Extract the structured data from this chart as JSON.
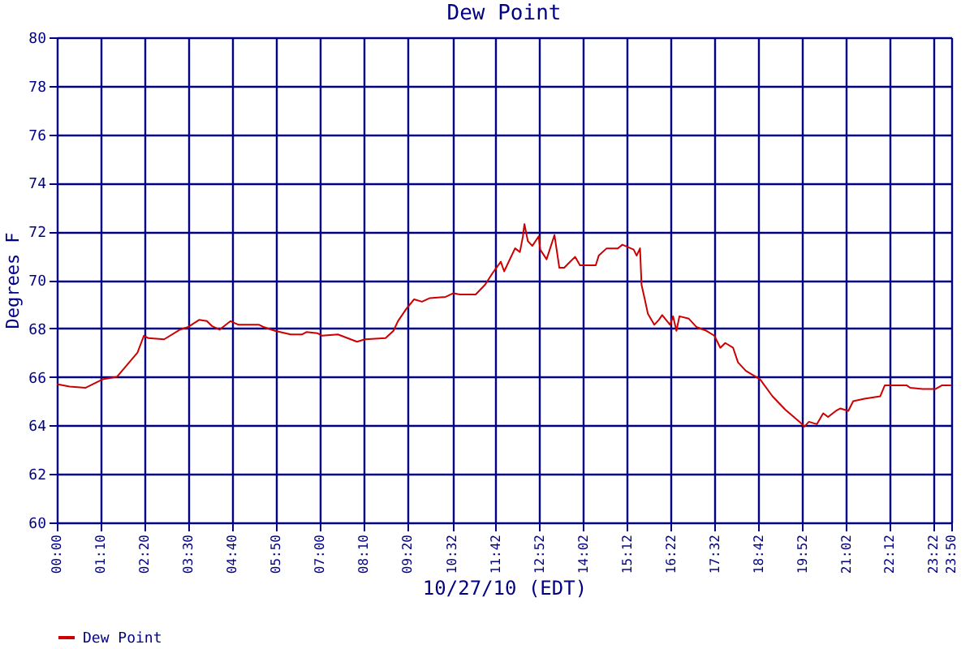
{
  "chart_data": {
    "type": "line",
    "title": "Dew Point",
    "xlabel": "10/27/10 (EDT)",
    "ylabel": "Degrees F",
    "x": [
      0,
      0.34,
      0.76,
      1.22,
      1.6,
      2.15,
      2.32,
      2.44,
      2.86,
      3.28,
      3.49,
      3.79,
      4.0,
      4.13,
      4.34,
      4.63,
      4.84,
      5.39,
      5.52,
      5.81,
      6.23,
      6.53,
      6.65,
      6.95,
      7.07,
      7.49,
      8.0,
      8.21,
      8.76,
      8.97,
      9.09,
      9.31,
      9.52,
      9.73,
      9.94,
      10.36,
      10.57,
      10.74,
      11.16,
      11.41,
      11.62,
      11.83,
      11.92,
      12.21,
      12.34,
      12.42,
      12.46,
      12.55,
      12.67,
      12.84,
      12.88,
      13.05,
      13.26,
      13.39,
      13.52,
      13.68,
      13.81,
      13.94,
      14.36,
      14.44,
      14.65,
      14.95,
      15.07,
      15.37,
      15.45,
      15.54,
      15.58,
      15.66,
      15.75,
      15.92,
      16.04,
      16.13,
      16.34,
      16.42,
      16.51,
      16.59,
      16.84,
      17.05,
      17.31,
      17.52,
      17.68,
      17.81,
      18.02,
      18.15,
      18.36,
      18.74,
      19.07,
      19.41,
      19.79,
      19.92,
      20.04,
      20.25,
      20.42,
      20.55,
      20.76,
      20.88,
      21.09,
      21.22,
      21.52,
      21.94,
      22.06,
      22.65,
      22.74,
      23.07,
      23.41,
      23.58,
      23.83
    ],
    "series": [
      {
        "name": "Dew Point",
        "color": "#cc0000",
        "values": [
          65.7,
          65.6,
          65.55,
          65.9,
          66.0,
          67.0,
          67.7,
          67.6,
          67.55,
          67.95,
          68.05,
          68.35,
          68.3,
          68.1,
          67.95,
          68.3,
          68.15,
          68.15,
          68.05,
          67.9,
          67.75,
          67.75,
          67.85,
          67.8,
          67.7,
          67.75,
          67.45,
          67.55,
          67.6,
          67.9,
          68.3,
          68.8,
          69.2,
          69.1,
          69.25,
          69.3,
          69.45,
          69.4,
          69.4,
          69.8,
          70.3,
          70.75,
          70.35,
          71.3,
          71.15,
          71.8,
          72.3,
          71.6,
          71.4,
          71.8,
          71.25,
          70.85,
          71.85,
          70.5,
          70.5,
          70.75,
          70.95,
          70.6,
          70.6,
          71.0,
          71.3,
          71.3,
          71.45,
          71.25,
          71.0,
          71.3,
          69.8,
          69.25,
          68.6,
          68.15,
          68.35,
          68.55,
          68.15,
          68.5,
          67.9,
          68.5,
          68.4,
          68.05,
          67.9,
          67.7,
          67.2,
          67.4,
          67.2,
          66.6,
          66.25,
          65.9,
          65.2,
          64.65,
          64.15,
          63.95,
          64.15,
          64.05,
          64.5,
          64.35,
          64.6,
          64.7,
          64.6,
          65.0,
          65.1,
          65.2,
          65.65,
          65.65,
          65.55,
          65.5,
          65.5,
          65.65,
          65.65
        ]
      }
    ],
    "xlim": [
      0,
      23.8333
    ],
    "xticks": [
      {
        "value": 0,
        "label": "00:00"
      },
      {
        "value": 1.1667,
        "label": "01:10"
      },
      {
        "value": 2.3333,
        "label": "02:20"
      },
      {
        "value": 3.5,
        "label": "03:30"
      },
      {
        "value": 4.6667,
        "label": "04:40"
      },
      {
        "value": 5.8333,
        "label": "05:50"
      },
      {
        "value": 7,
        "label": "07:00"
      },
      {
        "value": 8.1667,
        "label": "08:10"
      },
      {
        "value": 9.3333,
        "label": "09:20"
      },
      {
        "value": 10.5333,
        "label": "10:32"
      },
      {
        "value": 11.7,
        "label": "11:42"
      },
      {
        "value": 12.8667,
        "label": "12:52"
      },
      {
        "value": 14.0333,
        "label": "14:02"
      },
      {
        "value": 15.2,
        "label": "15:12"
      },
      {
        "value": 16.3667,
        "label": "16:22"
      },
      {
        "value": 17.5333,
        "label": "17:32"
      },
      {
        "value": 18.7,
        "label": "18:42"
      },
      {
        "value": 19.8667,
        "label": "19:52"
      },
      {
        "value": 21.0333,
        "label": "21:02"
      },
      {
        "value": 22.2,
        "label": "22:12"
      },
      {
        "value": 23.3667,
        "label": "23:22"
      },
      {
        "value": 23.8333,
        "label": "23:50"
      }
    ],
    "ylim": [
      60,
      80
    ],
    "yticks": [
      60,
      62,
      64,
      66,
      68,
      70,
      72,
      74,
      76,
      78,
      80
    ],
    "grid": true,
    "legend": "bottom",
    "marker": "none",
    "line_style": "solid"
  }
}
